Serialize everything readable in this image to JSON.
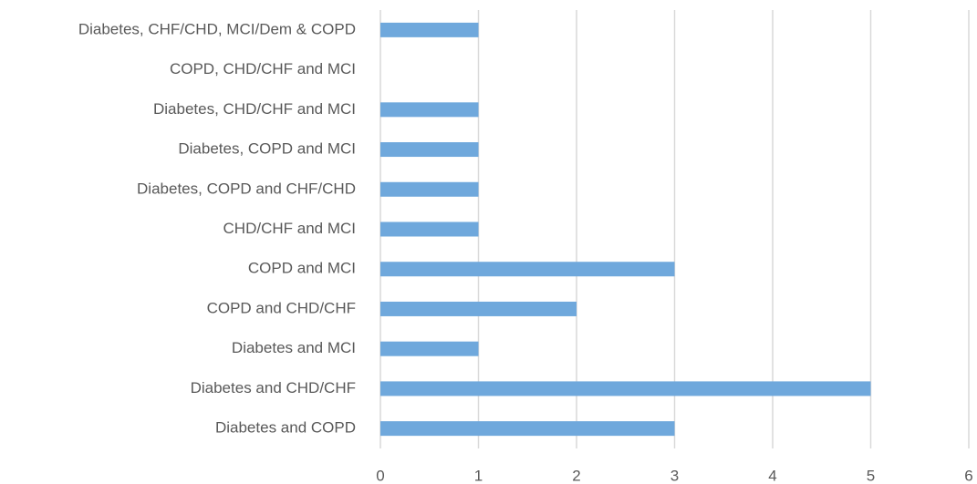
{
  "chart_data": {
    "type": "bar",
    "orientation": "horizontal",
    "categories": [
      "Diabetes, CHF/CHD, MCI/Dem & COPD",
      "COPD, CHD/CHF and MCI",
      "Diabetes, CHD/CHF and MCI",
      "Diabetes, COPD and MCI",
      "Diabetes, COPD and CHF/CHD",
      "CHD/CHF and MCI",
      "COPD and MCI",
      "COPD and CHD/CHF",
      "Diabetes and MCI",
      "Diabetes and CHD/CHF",
      "Diabetes and COPD"
    ],
    "values": [
      1,
      0,
      1,
      1,
      1,
      1,
      3,
      2,
      1,
      5,
      3
    ],
    "color": "#6fa8dc",
    "xlim": [
      0,
      6
    ],
    "xticks": [
      0,
      1,
      2,
      3,
      4,
      5,
      6
    ],
    "grid": true
  }
}
